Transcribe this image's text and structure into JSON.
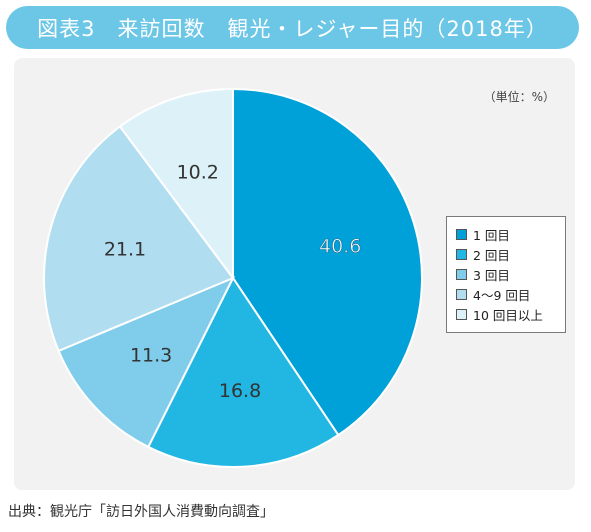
{
  "header": {
    "title": "図表3　来訪回数　観光・レジャー目的（2018年）"
  },
  "unit_note": "（単位：%）",
  "source": "出典：観光庁「訪日外国人消費動向調査」",
  "colors": [
    "#00a0d8",
    "#22b7e2",
    "#7fcdea",
    "#b0def0",
    "#ddf1f8"
  ],
  "chart_data": {
    "type": "pie",
    "categories": [
      "1 回目",
      "2 回目",
      "3 回目",
      "4～9 回目",
      "10 回目以上"
    ],
    "values": [
      40.6,
      16.8,
      11.3,
      21.1,
      10.2
    ],
    "start": "top",
    "direction": "clockwise",
    "legend_position": "right"
  }
}
